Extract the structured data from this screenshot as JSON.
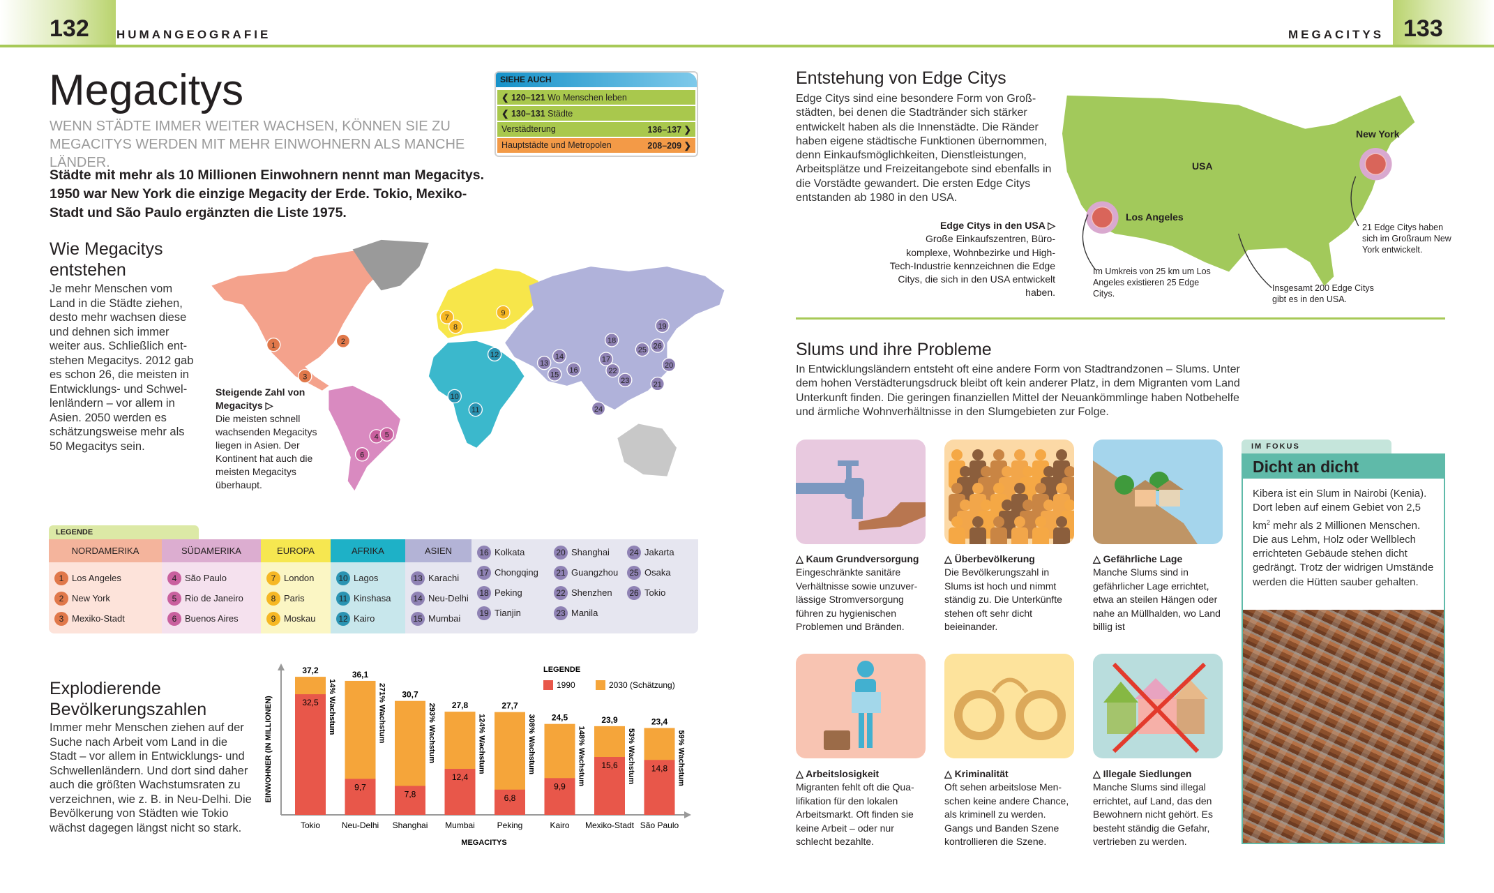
{
  "header": {
    "left_page": "132",
    "left_section": "HUMANGEOGRAFIE",
    "right_section": "MEGACITYS",
    "right_page": "133",
    "accent": "#a7c957"
  },
  "title": "Megacitys",
  "subtitle": "Wenn Städte immer weiter wachsen, können sie zu Mega­citys werden mit mehr Einwohnern als manche Länder.",
  "intro": "Städte mit mehr als 10 Millionen Einwohnern nennt man Megacitys. 1950 war New York die einzige Megacity der Erde. Tokio, Mexiko-Stadt und São Paulo ergänzten die Liste 1975.",
  "see_also": {
    "heading": "SIEHE AUCH",
    "items": [
      {
        "pages": "❮ 120–121",
        "label": "Wo Menschen leben"
      },
      {
        "pages": "❮ 130–131",
        "label": "Städte"
      },
      {
        "label": "Verstädterung",
        "pages": "136–137 ❯"
      },
      {
        "label": "Hauptstädte und Metropolen",
        "pages": "208–209 ❯"
      }
    ]
  },
  "section1": {
    "heading": "Wie Megacitys entstehen",
    "body": "Je mehr Menschen vom Land in die Städte ziehen, desto mehr wachsen diese und dehnen sich immer weiter aus. Schließlich ent­stehen Megacitys. 2012 gab es schon 26, die meisten in Entwicklungs- und Schwel­lenländern – vor allem in Asien. 2050 werden es schätzungsweise mehr als 50 Megacitys sein.",
    "caption_title": "Steigende Zahl von Megacitys ▷",
    "caption": "Die meisten schnell wachsenden Mega­citys liegen in Asien. Der Kontinent hat auch die meisten Megacitys überhaupt."
  },
  "legend": {
    "title": "LEGENDE",
    "regions": [
      {
        "name": "NORDAMERIKA",
        "color": "#f4b49c",
        "bg": "#fde3da",
        "dot": "#e0784a",
        "cities": [
          [
            "1",
            "Los Angeles"
          ],
          [
            "2",
            "New York"
          ],
          [
            "3",
            "Mexiko-Stadt"
          ]
        ]
      },
      {
        "name": "SÜDAMERIKA",
        "color": "#dcadd0",
        "bg": "#f5e1ee",
        "dot": "#c9609e",
        "cities": [
          [
            "4",
            "São Paulo"
          ],
          [
            "5",
            "Rio de Janeiro"
          ],
          [
            "6",
            "Buenos Aires"
          ]
        ]
      },
      {
        "name": "EUROPA",
        "color": "#f6e750",
        "bg": "#fbf6c4",
        "dot": "#f6b724",
        "cities": [
          [
            "7",
            "London"
          ],
          [
            "8",
            "Paris"
          ],
          [
            "9",
            "Moskau"
          ]
        ]
      },
      {
        "name": "AFRIKA",
        "color": "#1eb1c7",
        "bg": "#c8e7ec",
        "dot": "#2a93b2",
        "cities": [
          [
            "10",
            "Lagos"
          ],
          [
            "11",
            "Kinshasa"
          ],
          [
            "12",
            "Kairo"
          ]
        ]
      },
      {
        "name": "ASIEN",
        "color": "#b3b3d6",
        "bg": "#e6e6f0",
        "dot": "#8f82b4",
        "cities": [
          [
            "13",
            "Karachi"
          ],
          [
            "14",
            "Neu-Delhi"
          ],
          [
            "15",
            "Mumbai"
          ]
        ]
      }
    ],
    "asia_more": [
      [
        [
          "16",
          "Kolkata"
        ],
        [
          "17",
          "Chongqing"
        ],
        [
          "18",
          "Peking"
        ],
        [
          "19",
          "Tianjin"
        ]
      ],
      [
        [
          "20",
          "Shanghai"
        ],
        [
          "21",
          "Guangzhou"
        ],
        [
          "22",
          "Shenzhen"
        ],
        [
          "23",
          "Manila"
        ]
      ],
      [
        [
          "24",
          "Jakarta"
        ],
        [
          "25",
          "Osaka"
        ],
        [
          "26",
          "Tokio"
        ]
      ]
    ]
  },
  "section2": {
    "heading": "Explodierende Bevölkerungszahlen",
    "body": "Immer mehr Menschen ziehen auf der Suche nach Arbeit vom Land in die Stadt – vor allem in Ent­wicklungs- und Schwellenländern. Und dort sind daher auch die größ­ten Wachstumsraten zu verzeichnen, wie z. B. in Neu-Delhi. Die Bevölke­rung von Städten wie Tokio wächst dagegen längst nicht so stark."
  },
  "chart_data": {
    "type": "bar",
    "stacked": "overlay",
    "xlabel": "MEGACITYS",
    "ylabel": "EINWOHNER (IN MILLIONEN)",
    "legend_title": "LEGENDE",
    "legend_position": "top-right",
    "grid": false,
    "categories": [
      "Tokio",
      "Neu-Delhi",
      "Shanghai",
      "Mumbai",
      "Peking",
      "Kairo",
      "Mexiko-Stadt",
      "São Paulo"
    ],
    "series": [
      {
        "name": "1990",
        "color": "#e8574a",
        "values": [
          32.5,
          9.7,
          7.8,
          12.4,
          6.8,
          9.9,
          15.6,
          14.8
        ],
        "labels": [
          "32,5",
          "9,7",
          "7,8",
          "12,4",
          "6,8",
          "9,9",
          "15,6",
          "14,8"
        ]
      },
      {
        "name": "2030 (Schätzung)",
        "color": "#f5a53a",
        "values": [
          37.2,
          36.1,
          30.7,
          27.8,
          27.7,
          24.5,
          23.9,
          23.4
        ],
        "labels": [
          "37,2",
          "36,1",
          "30,7",
          "27,8",
          "27,7",
          "24,5",
          "23,9",
          "23,4"
        ]
      }
    ],
    "growth_labels": [
      "14% Wachstum",
      "271% Wachstum",
      "293% Wachstum",
      "124% Wachstum",
      "308% Wachstum",
      "148% Wachstum",
      "53% Wachstum",
      "59% Wachstum"
    ]
  },
  "edge": {
    "heading": "Entstehung von Edge Citys",
    "body": "Edge Citys sind eine besondere Form von Groß­städten, bei denen die Stadtränder sich stärker entwickelt haben als die Innenstädte. Die Ränder haben eigene städtische Funktionen übernommen, denn Einkaufsmöglichkeiten, Dienstleistungen, Arbeitsplätze und Freizeitangebote sind ebenfalls in die Vorstädte gewandert. Die ersten Edge Citys entstanden ab 1980 in den USA.",
    "caption_title": "Edge Citys in den USA ▷",
    "caption": "Große Einkaufszentren, Büro­komplexe, Wohnbezirke und High-Tech-Industrie kennzeichnen die Edge Citys, die sich in den USA entwickelt haben.",
    "map": {
      "country": "USA",
      "la": "Los Angeles",
      "ny": "New York",
      "note_la": "Im Umkreis von 25 km um Los Angeles existieren 25 Edge Citys.",
      "note_total": "Insgesamt 200 Edge Citys gibt es in den USA.",
      "note_ny": "21 Edge Citys haben sich im Großraum New York entwickelt."
    }
  },
  "slums": {
    "heading": "Slums und ihre Probleme",
    "body": "In Entwicklungsländern entsteht oft eine andere Form von Stadtrandzonen – Slums. Unter dem hohen Verstädterungsdruck bleibt oft kein anderer Platz, in dem Migranten vom Land Unterkunft finden. Die geringen finanziellen Mittel der Neuankömmlinge haben Notbehelfe und ärmliche Wohnverhältnisse in den Slumgebieten zur Folge.",
    "problems": [
      {
        "title": "△ Kaum Grundversorgung",
        "text": "Eingeschränkte sanitäre Verhältnisse sowie unzuver­lässige Stromversorgung führen zu hygienischen Problemen und Bränden.",
        "icon": "water-tap-icon"
      },
      {
        "title": "△ Überbevölkerung",
        "text": "Die Bevölkerungszahl in Slums ist hoch und nimmt ständig zu. Die Unterkünfte stehen oft sehr dicht beieinander.",
        "icon": "crowd-icon"
      },
      {
        "title": "△ Gefährliche Lage",
        "text": "Manche Slums sind in gefährlicher Lage errichtet, etwa an steilen Hängen oder nahe an Müllhalden, wo Land billig ist",
        "icon": "hillside-huts-icon"
      },
      {
        "title": "△ Arbeitslosigkeit",
        "text": "Migranten fehlt oft die Qua­lifikation für den lokalen Arbeitsmarkt. Oft finden sie keine Arbeit – oder nur schlecht bezahlte.",
        "icon": "jobseeker-icon"
      },
      {
        "title": "△ Kriminalität",
        "text": "Oft sehen arbeitslose Men­schen keine andere Chance, als kriminell zu werden. Gangs und Banden Szene kontrollieren die Szene.",
        "icon": "handcuffs-icon"
      },
      {
        "title": "△ Illegale Siedlungen",
        "text": "Manche Slums sind illegal errichtet, auf Land, das den Bewohnern nicht gehört. Es besteht ständig die Gefahr, vertrieben zu werden.",
        "icon": "crossed-houses-icon"
      }
    ]
  },
  "focus": {
    "tab": "IM FOKUS",
    "heading": "Dicht an dicht",
    "text_pre": "Kibera ist ein Slum in Nairobi (Kenia). Dort leben auf einem Gebiet von 2,5 km",
    "text_sup": "2",
    "text_post": " mehr als 2 Millionen Menschen. Die aus Lehm, Holz oder Wellblech errichteten Gebäude stehen dicht gedrängt. Trotz der widrigen Umstände werden die Hütten sauber gehalten."
  }
}
